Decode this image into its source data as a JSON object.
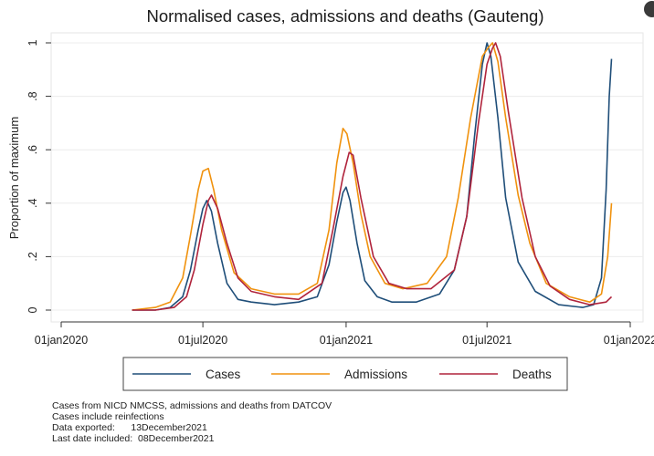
{
  "chart_data": {
    "type": "line",
    "title": "Normalised cases, admissions and deaths (Gauteng)",
    "xlabel": "",
    "ylabel": "Proportion of maximum",
    "x_ticks": [
      "01jan2020",
      "01jul2020",
      "01jan2021",
      "01jul2021",
      "01jan2022"
    ],
    "y_ticks": [
      "0",
      ".2",
      ".4",
      ".6",
      ".8",
      "1"
    ],
    "ylim": [
      0,
      1
    ],
    "xlim": [
      "2020-01-01",
      "2022-01-01"
    ],
    "grid": "horizontal",
    "legend_position": "bottom",
    "series": [
      {
        "name": "Cases",
        "color": "#1f4e79",
        "points": [
          [
            "2020-04-01",
            0.0
          ],
          [
            "2020-05-01",
            0.0
          ],
          [
            "2020-05-20",
            0.01
          ],
          [
            "2020-06-05",
            0.05
          ],
          [
            "2020-06-15",
            0.15
          ],
          [
            "2020-06-25",
            0.3
          ],
          [
            "2020-07-01",
            0.38
          ],
          [
            "2020-07-06",
            0.41
          ],
          [
            "2020-07-12",
            0.37
          ],
          [
            "2020-07-20",
            0.25
          ],
          [
            "2020-08-01",
            0.1
          ],
          [
            "2020-08-15",
            0.04
          ],
          [
            "2020-09-01",
            0.03
          ],
          [
            "2020-10-01",
            0.02
          ],
          [
            "2020-11-01",
            0.03
          ],
          [
            "2020-11-25",
            0.05
          ],
          [
            "2020-12-10",
            0.17
          ],
          [
            "2020-12-20",
            0.33
          ],
          [
            "2020-12-28",
            0.44
          ],
          [
            "2021-01-01",
            0.46
          ],
          [
            "2021-01-06",
            0.41
          ],
          [
            "2021-01-15",
            0.25
          ],
          [
            "2021-01-25",
            0.11
          ],
          [
            "2021-02-10",
            0.05
          ],
          [
            "2021-03-01",
            0.03
          ],
          [
            "2021-04-01",
            0.03
          ],
          [
            "2021-05-01",
            0.06
          ],
          [
            "2021-05-20",
            0.15
          ],
          [
            "2021-06-05",
            0.35
          ],
          [
            "2021-06-15",
            0.65
          ],
          [
            "2021-06-25",
            0.92
          ],
          [
            "2021-07-01",
            1.0
          ],
          [
            "2021-07-06",
            0.95
          ],
          [
            "2021-07-15",
            0.72
          ],
          [
            "2021-07-25",
            0.42
          ],
          [
            "2021-08-10",
            0.18
          ],
          [
            "2021-09-01",
            0.07
          ],
          [
            "2021-10-01",
            0.02
          ],
          [
            "2021-11-01",
            0.01
          ],
          [
            "2021-11-15",
            0.02
          ],
          [
            "2021-11-25",
            0.12
          ],
          [
            "2021-12-01",
            0.45
          ],
          [
            "2021-12-05",
            0.8
          ],
          [
            "2021-12-08",
            0.94
          ]
        ]
      },
      {
        "name": "Admissions",
        "color": "#f0920e",
        "points": [
          [
            "2020-04-01",
            0.0
          ],
          [
            "2020-05-01",
            0.01
          ],
          [
            "2020-05-20",
            0.03
          ],
          [
            "2020-06-05",
            0.12
          ],
          [
            "2020-06-15",
            0.28
          ],
          [
            "2020-06-25",
            0.45
          ],
          [
            "2020-07-01",
            0.52
          ],
          [
            "2020-07-08",
            0.53
          ],
          [
            "2020-07-15",
            0.45
          ],
          [
            "2020-07-25",
            0.3
          ],
          [
            "2020-08-10",
            0.14
          ],
          [
            "2020-09-01",
            0.08
          ],
          [
            "2020-10-01",
            0.06
          ],
          [
            "2020-11-01",
            0.06
          ],
          [
            "2020-11-25",
            0.1
          ],
          [
            "2020-12-10",
            0.3
          ],
          [
            "2020-12-20",
            0.55
          ],
          [
            "2020-12-28",
            0.68
          ],
          [
            "2021-01-02",
            0.66
          ],
          [
            "2021-01-10",
            0.55
          ],
          [
            "2021-01-20",
            0.36
          ],
          [
            "2021-02-01",
            0.2
          ],
          [
            "2021-02-20",
            0.1
          ],
          [
            "2021-03-15",
            0.08
          ],
          [
            "2021-04-15",
            0.1
          ],
          [
            "2021-05-10",
            0.2
          ],
          [
            "2021-05-25",
            0.42
          ],
          [
            "2021-06-10",
            0.72
          ],
          [
            "2021-06-25",
            0.95
          ],
          [
            "2021-07-02",
            0.98
          ],
          [
            "2021-07-08",
            1.0
          ],
          [
            "2021-07-15",
            0.93
          ],
          [
            "2021-07-25",
            0.72
          ],
          [
            "2021-08-10",
            0.43
          ],
          [
            "2021-08-25",
            0.25
          ],
          [
            "2021-09-15",
            0.1
          ],
          [
            "2021-10-15",
            0.05
          ],
          [
            "2021-11-10",
            0.03
          ],
          [
            "2021-11-25",
            0.06
          ],
          [
            "2021-12-03",
            0.2
          ],
          [
            "2021-12-08",
            0.4
          ]
        ]
      },
      {
        "name": "Deaths",
        "color": "#b0243c",
        "points": [
          [
            "2020-04-01",
            0.0
          ],
          [
            "2020-05-01",
            0.0
          ],
          [
            "2020-05-25",
            0.01
          ],
          [
            "2020-06-10",
            0.05
          ],
          [
            "2020-06-20",
            0.15
          ],
          [
            "2020-07-01",
            0.32
          ],
          [
            "2020-07-08",
            0.41
          ],
          [
            "2020-07-12",
            0.43
          ],
          [
            "2020-07-20",
            0.38
          ],
          [
            "2020-08-01",
            0.25
          ],
          [
            "2020-08-15",
            0.12
          ],
          [
            "2020-09-01",
            0.07
          ],
          [
            "2020-10-01",
            0.05
          ],
          [
            "2020-11-01",
            0.04
          ],
          [
            "2020-12-01",
            0.1
          ],
          [
            "2020-12-15",
            0.3
          ],
          [
            "2020-12-28",
            0.5
          ],
          [
            "2021-01-05",
            0.59
          ],
          [
            "2021-01-10",
            0.58
          ],
          [
            "2021-01-20",
            0.42
          ],
          [
            "2021-02-05",
            0.2
          ],
          [
            "2021-02-25",
            0.1
          ],
          [
            "2021-03-20",
            0.08
          ],
          [
            "2021-04-20",
            0.08
          ],
          [
            "2021-05-20",
            0.15
          ],
          [
            "2021-06-05",
            0.35
          ],
          [
            "2021-06-20",
            0.7
          ],
          [
            "2021-07-01",
            0.92
          ],
          [
            "2021-07-08",
            0.98
          ],
          [
            "2021-07-12",
            1.0
          ],
          [
            "2021-07-18",
            0.95
          ],
          [
            "2021-07-28",
            0.75
          ],
          [
            "2021-08-15",
            0.42
          ],
          [
            "2021-09-01",
            0.2
          ],
          [
            "2021-09-20",
            0.09
          ],
          [
            "2021-10-15",
            0.04
          ],
          [
            "2021-11-10",
            0.02
          ],
          [
            "2021-12-01",
            0.03
          ],
          [
            "2021-12-08",
            0.05
          ]
        ]
      }
    ],
    "notes": [
      "Cases from NICD NMCSS, admissions and deaths from DATCOV",
      "Cases include reinfections",
      "Data exported:      13December2021",
      "Last date included:  08December2021"
    ]
  }
}
